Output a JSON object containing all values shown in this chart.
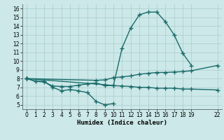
{
  "bg_color": "#cce8e8",
  "grid_color": "#aacccc",
  "line_color": "#1a6b6b",
  "line_width": 1.0,
  "marker": "+",
  "marker_size": 4,
  "marker_lw": 1.0,
  "xlabel": "Humidex (Indice chaleur)",
  "xlim": [
    -0.5,
    22.5
  ],
  "ylim": [
    4.5,
    16.5
  ],
  "yticks": [
    5,
    6,
    7,
    8,
    9,
    10,
    11,
    12,
    13,
    14,
    15,
    16
  ],
  "xticks": [
    0,
    1,
    2,
    3,
    4,
    5,
    6,
    7,
    8,
    9,
    10,
    11,
    12,
    13,
    14,
    15,
    16,
    17,
    18,
    19,
    22
  ],
  "curves": [
    {
      "x": [
        0,
        1,
        2,
        3,
        4,
        5,
        6,
        7,
        8,
        9,
        10
      ],
      "y": [
        8.0,
        7.7,
        7.7,
        7.0,
        6.6,
        6.75,
        6.6,
        6.4,
        5.4,
        5.0,
        5.15
      ]
    },
    {
      "x": [
        0,
        1,
        2,
        3,
        4,
        5,
        6,
        7,
        8,
        9,
        10,
        11,
        12,
        13,
        14,
        15,
        16,
        17,
        18,
        19
      ],
      "y": [
        8.0,
        7.7,
        7.6,
        7.15,
        7.1,
        7.1,
        7.25,
        7.4,
        7.5,
        7.2,
        7.2,
        11.5,
        13.8,
        15.3,
        15.6,
        15.6,
        14.5,
        13.0,
        10.9,
        9.5
      ]
    },
    {
      "x": [
        0,
        8,
        9,
        10,
        11,
        12,
        13,
        14,
        15,
        16,
        17,
        18,
        19,
        22
      ],
      "y": [
        8.0,
        7.8,
        7.85,
        8.1,
        8.2,
        8.3,
        8.5,
        8.6,
        8.7,
        8.7,
        8.75,
        8.8,
        8.9,
        9.5
      ]
    },
    {
      "x": [
        0,
        9,
        10,
        11,
        12,
        13,
        14,
        15,
        16,
        17,
        18,
        19,
        22
      ],
      "y": [
        8.0,
        7.3,
        7.2,
        7.15,
        7.1,
        7.0,
        7.0,
        6.9,
        6.9,
        6.9,
        6.8,
        6.8,
        6.7
      ]
    }
  ]
}
